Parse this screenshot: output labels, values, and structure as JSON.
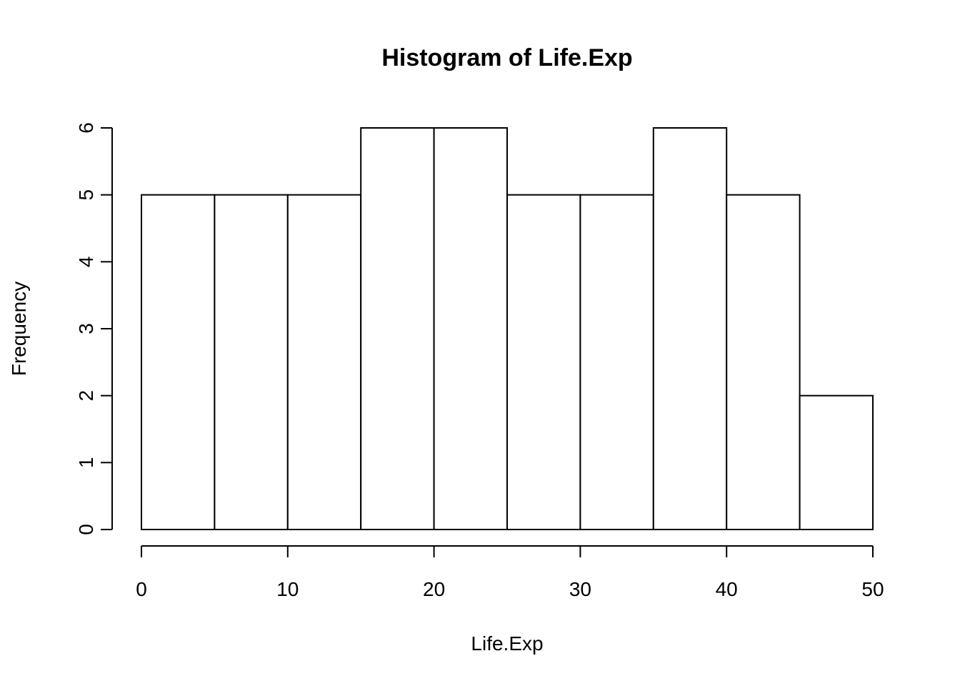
{
  "chart_data": {
    "type": "bar",
    "title": "Histogram of Life.Exp",
    "xlabel": "Life.Exp",
    "ylabel": "Frequency",
    "bins": [
      {
        "from": 0,
        "to": 5,
        "count": 5
      },
      {
        "from": 5,
        "to": 10,
        "count": 5
      },
      {
        "from": 10,
        "to": 15,
        "count": 5
      },
      {
        "from": 15,
        "to": 20,
        "count": 6
      },
      {
        "from": 20,
        "to": 25,
        "count": 6
      },
      {
        "from": 25,
        "to": 30,
        "count": 5
      },
      {
        "from": 30,
        "to": 35,
        "count": 5
      },
      {
        "from": 35,
        "to": 40,
        "count": 6
      },
      {
        "from": 40,
        "to": 45,
        "count": 5
      },
      {
        "from": 45,
        "to": 50,
        "count": 2
      }
    ],
    "xlim": [
      0,
      50
    ],
    "ylim": [
      0,
      6
    ],
    "xticks": [
      "0",
      "10",
      "20",
      "30",
      "40",
      "50"
    ],
    "yticks": [
      "0",
      "1",
      "2",
      "3",
      "4",
      "5",
      "6"
    ],
    "grid": false,
    "legend": "none",
    "colors": {
      "bar_fill": "#ffffff",
      "bar_stroke": "#000000"
    }
  }
}
